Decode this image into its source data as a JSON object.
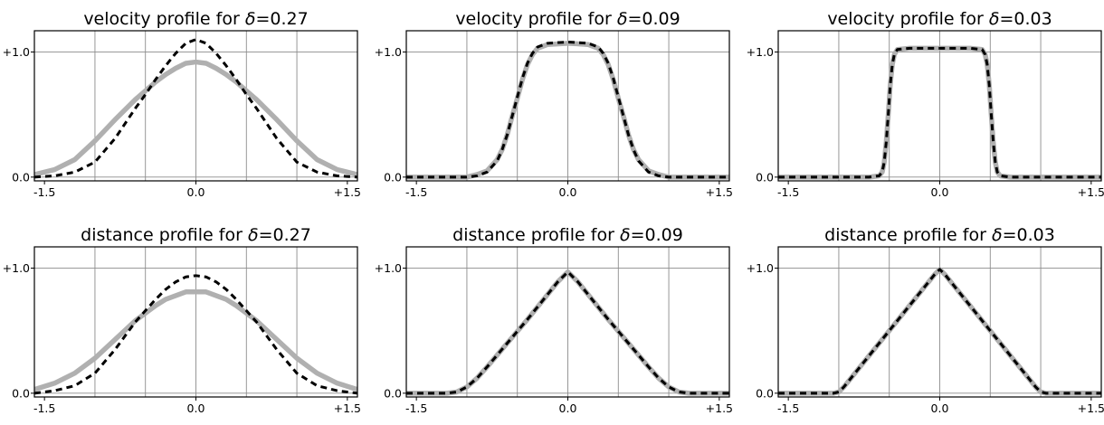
{
  "chart_data": [
    {
      "type": "line",
      "title_prefix": "velocity profile for ",
      "delta_symbol": "δ",
      "delta_value": "=0.27",
      "xlim": [
        -1.6,
        1.6
      ],
      "ylim": [
        -0.03,
        1.17
      ],
      "xticks": [
        -1.5,
        0.0,
        1.5
      ],
      "xtick_labels": [
        "-1.5",
        "0.0",
        "+1.5"
      ],
      "yticks": [
        0.0,
        1.0
      ],
      "ytick_labels": [
        "0.0",
        "+1.0"
      ],
      "x_gridlines": [
        -1.0,
        -0.5,
        0.0,
        0.5,
        1.0
      ],
      "series": [
        {
          "style": "solid",
          "color": "#b0b0b0",
          "x": [
            -1.6,
            -1.4,
            -1.2,
            -1.0,
            -0.8,
            -0.6,
            -0.5,
            -0.4,
            -0.3,
            -0.2,
            -0.1,
            0.0,
            0.1,
            0.2,
            0.3,
            0.4,
            0.5,
            0.6,
            0.8,
            1.0,
            1.2,
            1.4,
            1.6
          ],
          "y": [
            0.02,
            0.06,
            0.14,
            0.29,
            0.46,
            0.62,
            0.69,
            0.76,
            0.82,
            0.87,
            0.91,
            0.92,
            0.91,
            0.87,
            0.82,
            0.76,
            0.69,
            0.62,
            0.46,
            0.29,
            0.14,
            0.06,
            0.02
          ]
        },
        {
          "style": "dashed",
          "color": "#000000",
          "x": [
            -1.6,
            -1.4,
            -1.2,
            -1.0,
            -0.8,
            -0.6,
            -0.5,
            -0.4,
            -0.3,
            -0.2,
            -0.1,
            0.0,
            0.1,
            0.2,
            0.3,
            0.4,
            0.5,
            0.6,
            0.8,
            1.0,
            1.2,
            1.4,
            1.6
          ],
          "y": [
            0.0,
            0.01,
            0.04,
            0.12,
            0.31,
            0.55,
            0.66,
            0.78,
            0.89,
            0.99,
            1.07,
            1.1,
            1.07,
            0.99,
            0.89,
            0.78,
            0.66,
            0.55,
            0.31,
            0.12,
            0.04,
            0.01,
            0.0
          ]
        }
      ]
    },
    {
      "type": "line",
      "title_prefix": "velocity profile for ",
      "delta_symbol": "δ",
      "delta_value": "=0.09",
      "xlim": [
        -1.6,
        1.6
      ],
      "ylim": [
        -0.03,
        1.17
      ],
      "xticks": [
        -1.5,
        0.0,
        1.5
      ],
      "xtick_labels": [
        "-1.5",
        "0.0",
        "+1.5"
      ],
      "yticks": [
        0.0,
        1.0
      ],
      "ytick_labels": [
        "0.0",
        "+1.0"
      ],
      "x_gridlines": [
        -1.0,
        -0.5,
        0.0,
        0.5,
        1.0
      ],
      "series": [
        {
          "style": "solid",
          "color": "#b0b0b0",
          "x": [
            -1.6,
            -1.2,
            -1.0,
            -0.9,
            -0.8,
            -0.7,
            -0.65,
            -0.6,
            -0.55,
            -0.5,
            -0.45,
            -0.4,
            -0.35,
            -0.3,
            -0.2,
            0.0,
            0.2,
            0.3,
            0.35,
            0.4,
            0.45,
            0.5,
            0.55,
            0.6,
            0.65,
            0.7,
            0.8,
            0.9,
            1.0,
            1.2,
            1.6
          ],
          "y": [
            0.0,
            0.0,
            0.0,
            0.02,
            0.05,
            0.14,
            0.22,
            0.34,
            0.49,
            0.63,
            0.78,
            0.9,
            0.98,
            1.03,
            1.06,
            1.07,
            1.06,
            1.03,
            0.98,
            0.9,
            0.78,
            0.63,
            0.49,
            0.34,
            0.22,
            0.14,
            0.05,
            0.02,
            0.0,
            0.0,
            0.0
          ]
        },
        {
          "style": "dashed",
          "color": "#000000",
          "x": [
            -1.6,
            -1.2,
            -1.0,
            -0.9,
            -0.8,
            -0.7,
            -0.65,
            -0.6,
            -0.55,
            -0.5,
            -0.45,
            -0.4,
            -0.35,
            -0.3,
            -0.2,
            0.0,
            0.2,
            0.3,
            0.35,
            0.4,
            0.45,
            0.5,
            0.55,
            0.6,
            0.65,
            0.7,
            0.8,
            0.9,
            1.0,
            1.2,
            1.6
          ],
          "y": [
            0.0,
            0.0,
            0.0,
            0.01,
            0.04,
            0.13,
            0.22,
            0.34,
            0.49,
            0.64,
            0.79,
            0.91,
            0.99,
            1.04,
            1.07,
            1.08,
            1.07,
            1.04,
            0.99,
            0.91,
            0.79,
            0.64,
            0.49,
            0.34,
            0.22,
            0.13,
            0.04,
            0.01,
            0.0,
            0.0,
            0.0
          ]
        }
      ]
    },
    {
      "type": "line",
      "title_prefix": "velocity profile for ",
      "delta_symbol": "δ",
      "delta_value": "=0.03",
      "xlim": [
        -1.6,
        1.6
      ],
      "ylim": [
        -0.03,
        1.17
      ],
      "xticks": [
        -1.5,
        0.0,
        1.5
      ],
      "xtick_labels": [
        "-1.5",
        "0.0",
        "+1.5"
      ],
      "yticks": [
        0.0,
        1.0
      ],
      "ytick_labels": [
        "0.0",
        "+1.0"
      ],
      "x_gridlines": [
        -1.0,
        -0.5,
        0.0,
        0.5,
        1.0
      ],
      "series": [
        {
          "style": "solid",
          "color": "#b0b0b0",
          "x": [
            -1.6,
            -0.7,
            -0.6,
            -0.57,
            -0.55,
            -0.53,
            -0.51,
            -0.49,
            -0.47,
            -0.45,
            -0.42,
            -0.3,
            0.0,
            0.3,
            0.42,
            0.45,
            0.47,
            0.49,
            0.51,
            0.53,
            0.55,
            0.57,
            0.6,
            0.7,
            1.6
          ],
          "y": [
            0.0,
            0.0,
            0.01,
            0.04,
            0.12,
            0.28,
            0.5,
            0.74,
            0.9,
            0.98,
            1.02,
            1.03,
            1.03,
            1.03,
            1.02,
            0.98,
            0.9,
            0.74,
            0.5,
            0.28,
            0.12,
            0.04,
            0.01,
            0.0,
            0.0
          ]
        },
        {
          "style": "dashed",
          "color": "#000000",
          "x": [
            -1.6,
            -0.7,
            -0.6,
            -0.57,
            -0.55,
            -0.53,
            -0.51,
            -0.49,
            -0.47,
            -0.45,
            -0.42,
            -0.3,
            0.0,
            0.3,
            0.42,
            0.45,
            0.47,
            0.49,
            0.51,
            0.53,
            0.55,
            0.57,
            0.6,
            0.7,
            1.6
          ],
          "y": [
            0.0,
            0.0,
            0.01,
            0.04,
            0.12,
            0.28,
            0.5,
            0.74,
            0.9,
            0.98,
            1.02,
            1.03,
            1.03,
            1.03,
            1.02,
            0.98,
            0.9,
            0.74,
            0.5,
            0.28,
            0.12,
            0.04,
            0.01,
            0.0,
            0.0
          ]
        }
      ]
    },
    {
      "type": "line",
      "title_prefix": "distance profile for ",
      "delta_symbol": "δ",
      "delta_value": "=0.27",
      "xlim": [
        -1.6,
        1.6
      ],
      "ylim": [
        -0.03,
        1.17
      ],
      "xticks": [
        -1.5,
        0.0,
        1.5
      ],
      "xtick_labels": [
        "-1.5",
        "0.0",
        "+1.5"
      ],
      "yticks": [
        0.0,
        1.0
      ],
      "ytick_labels": [
        "0.0",
        "+1.0"
      ],
      "x_gridlines": [
        -1.0,
        -0.5,
        0.0,
        0.5,
        1.0
      ],
      "series": [
        {
          "style": "solid",
          "color": "#b0b0b0",
          "x": [
            -1.6,
            -1.4,
            -1.2,
            -1.0,
            -0.8,
            -0.6,
            -0.5,
            -0.4,
            -0.3,
            -0.2,
            -0.1,
            0.0,
            0.1,
            0.2,
            0.3,
            0.4,
            0.5,
            0.6,
            0.8,
            1.0,
            1.2,
            1.4,
            1.6
          ],
          "y": [
            0.03,
            0.08,
            0.16,
            0.28,
            0.43,
            0.58,
            0.64,
            0.7,
            0.75,
            0.78,
            0.81,
            0.81,
            0.81,
            0.78,
            0.75,
            0.7,
            0.64,
            0.58,
            0.43,
            0.28,
            0.16,
            0.08,
            0.03
          ]
        },
        {
          "style": "dashed",
          "color": "#000000",
          "x": [
            -1.6,
            -1.4,
            -1.2,
            -1.0,
            -0.8,
            -0.6,
            -0.5,
            -0.4,
            -0.3,
            -0.2,
            -0.1,
            0.0,
            0.1,
            0.2,
            0.3,
            0.4,
            0.5,
            0.6,
            0.8,
            1.0,
            1.2,
            1.4,
            1.6
          ],
          "y": [
            0.0,
            0.02,
            0.06,
            0.16,
            0.35,
            0.57,
            0.66,
            0.75,
            0.83,
            0.89,
            0.93,
            0.94,
            0.93,
            0.89,
            0.83,
            0.75,
            0.66,
            0.57,
            0.35,
            0.16,
            0.06,
            0.02,
            0.0
          ]
        }
      ]
    },
    {
      "type": "line",
      "title_prefix": "distance profile for ",
      "delta_symbol": "δ",
      "delta_value": "=0.09",
      "xlim": [
        -1.6,
        1.6
      ],
      "ylim": [
        -0.03,
        1.17
      ],
      "xticks": [
        -1.5,
        0.0,
        1.5
      ],
      "xtick_labels": [
        "-1.5",
        "0.0",
        "+1.5"
      ],
      "yticks": [
        0.0,
        1.0
      ],
      "ytick_labels": [
        "0.0",
        "+1.0"
      ],
      "x_gridlines": [
        -1.0,
        -0.5,
        0.0,
        0.5,
        1.0
      ],
      "series": [
        {
          "style": "solid",
          "color": "#b0b0b0",
          "x": [
            -1.6,
            -1.2,
            -1.1,
            -1.0,
            -0.9,
            -0.8,
            -0.6,
            -0.4,
            -0.2,
            -0.1,
            0.0,
            0.1,
            0.2,
            0.4,
            0.6,
            0.8,
            0.9,
            1.0,
            1.1,
            1.2,
            1.6
          ],
          "y": [
            0.0,
            0.0,
            0.01,
            0.05,
            0.12,
            0.21,
            0.4,
            0.59,
            0.79,
            0.89,
            0.97,
            0.89,
            0.79,
            0.59,
            0.4,
            0.21,
            0.12,
            0.05,
            0.01,
            0.0,
            0.0
          ]
        },
        {
          "style": "dashed",
          "color": "#000000",
          "x": [
            -1.6,
            -1.2,
            -1.1,
            -1.0,
            -0.9,
            -0.8,
            -0.6,
            -0.4,
            -0.2,
            -0.1,
            0.0,
            0.1,
            0.2,
            0.4,
            0.6,
            0.8,
            0.9,
            1.0,
            1.1,
            1.2,
            1.6
          ],
          "y": [
            0.0,
            0.0,
            0.01,
            0.05,
            0.12,
            0.21,
            0.4,
            0.59,
            0.79,
            0.89,
            0.97,
            0.89,
            0.79,
            0.59,
            0.4,
            0.21,
            0.12,
            0.05,
            0.01,
            0.0,
            0.0
          ]
        }
      ]
    },
    {
      "type": "line",
      "title_prefix": "distance profile for ",
      "delta_symbol": "δ",
      "delta_value": "=0.03",
      "xlim": [
        -1.6,
        1.6
      ],
      "ylim": [
        -0.03,
        1.17
      ],
      "xticks": [
        -1.5,
        0.0,
        1.5
      ],
      "xtick_labels": [
        "-1.5",
        "0.0",
        "+1.5"
      ],
      "yticks": [
        0.0,
        1.0
      ],
      "ytick_labels": [
        "0.0",
        "+1.0"
      ],
      "x_gridlines": [
        -1.0,
        -0.5,
        0.0,
        0.5,
        1.0
      ],
      "series": [
        {
          "style": "solid",
          "color": "#b0b0b0",
          "x": [
            -1.6,
            -1.05,
            -1.0,
            -0.95,
            -0.5,
            -0.05,
            0.0,
            0.05,
            0.5,
            0.95,
            1.0,
            1.05,
            1.6
          ],
          "y": [
            0.0,
            0.0,
            0.01,
            0.05,
            0.5,
            0.95,
            0.99,
            0.95,
            0.5,
            0.05,
            0.01,
            0.0,
            0.0
          ]
        },
        {
          "style": "dashed",
          "color": "#000000",
          "x": [
            -1.6,
            -1.05,
            -1.0,
            -0.95,
            -0.5,
            -0.05,
            0.0,
            0.05,
            0.5,
            0.95,
            1.0,
            1.05,
            1.6
          ],
          "y": [
            0.0,
            0.0,
            0.01,
            0.05,
            0.5,
            0.95,
            0.99,
            0.95,
            0.5,
            0.05,
            0.01,
            0.0,
            0.0
          ]
        }
      ]
    }
  ]
}
